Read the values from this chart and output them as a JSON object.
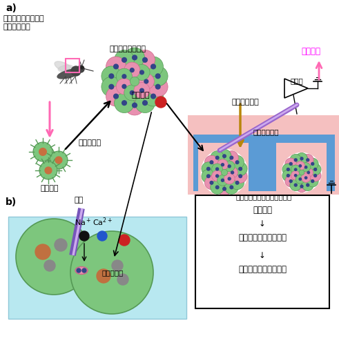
{
  "label_a": "a)",
  "label_b": "b)",
  "title_clone_1": "匂い受容体遺伝子の",
  "title_clone_2": "クローニング",
  "title_spheroid": "スフェロイド形成",
  "title_gas_stim": "気相匂い刺激",
  "title_smell_response": "匂い応答",
  "label_amplifier": "増幅器",
  "label_electrode": "銀塩化銀電極",
  "label_chamber": "ハイドロゲル微小チェンバー",
  "label_gene_expr": "遺伝子発現",
  "label_culture": "培養細胞",
  "label_b_electrode": "電極",
  "label_na": "Na$^+$",
  "label_ca": "Ca$^{2+}$",
  "label_odor_substance": "匂い物質",
  "label_odor_receptor": "匂い受容体",
  "box_line1": "匂い刺激",
  "box_line2": "↓",
  "box_line3": "細胞内へイオンが流入",
  "box_line4": "↓",
  "box_line5": "細胞外が負に電位変化",
  "bg_color": "#ffffff",
  "pink_bg": "#f5c0c0",
  "blue_chamber_bg": "#5b9bd5",
  "cell_green": "#7dc67d",
  "cell_pink": "#e890b0",
  "arrow_brown": "#b8860b",
  "arrow_pink": "#ff69b4",
  "text_pink": "#ff00ff",
  "text_black": "#000000",
  "panel_b_fluid": "#b8e8f0",
  "panel_b_bg": "#e8f4f8"
}
